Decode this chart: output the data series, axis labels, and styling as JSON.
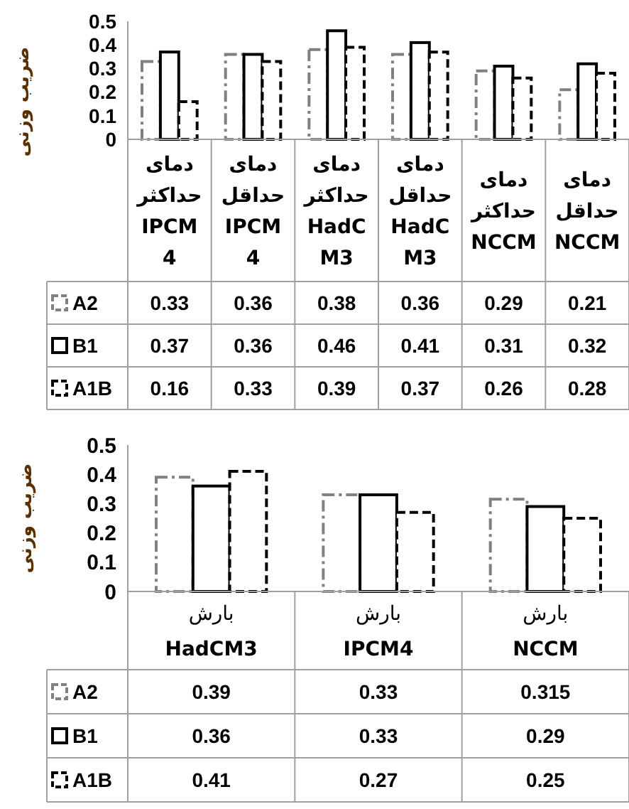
{
  "chart_data": [
    {
      "type": "bar",
      "ylabel": "ضریب وزنی",
      "categories": [
        "دمای حداکثر IPCM4",
        "دمای حداقل IPCM4",
        "دمای حداکثر HadCM3",
        "دمای حداقل HadCM3",
        "دمای حداکثر NCCM",
        "دمای حداقل NCCM"
      ],
      "series": [
        {
          "name": "A2",
          "color": "#808080",
          "line_style": "dotted",
          "values": [
            0.33,
            0.36,
            0.38,
            0.36,
            0.29,
            0.21
          ]
        },
        {
          "name": "B1",
          "color": "#000000",
          "line_style": "solid",
          "values": [
            0.37,
            0.36,
            0.46,
            0.41,
            0.31,
            0.32
          ]
        },
        {
          "name": "A1B",
          "color": "#000000",
          "line_style": "dashed",
          "values": [
            0.16,
            0.33,
            0.39,
            0.37,
            0.26,
            0.28
          ]
        }
      ],
      "ylim": [
        0,
        0.5
      ],
      "yticks": [
        0,
        0.1,
        0.2,
        0.3,
        0.4,
        0.5
      ],
      "data_labels": true,
      "legend": "bottom"
    },
    {
      "type": "bar",
      "ylabel": "ضریب وزنی",
      "categories": [
        "بارش HadCM3",
        "بارش IPCM4",
        "بارش NCCM"
      ],
      "series": [
        {
          "name": "A2",
          "color": "#808080",
          "line_style": "dotted",
          "values": [
            0.39,
            0.33,
            0.315
          ]
        },
        {
          "name": "B1",
          "color": "#000000",
          "line_style": "solid",
          "values": [
            0.36,
            0.33,
            0.29
          ]
        },
        {
          "name": "A1B",
          "color": "#000000",
          "line_style": "dashed",
          "values": [
            0.41,
            0.27,
            0.25
          ]
        }
      ],
      "ylim": [
        0,
        0.5
      ],
      "yticks": [
        0,
        0.1,
        0.2,
        0.3,
        0.4,
        0.5
      ],
      "data_labels": true,
      "legend": "bottom"
    }
  ]
}
